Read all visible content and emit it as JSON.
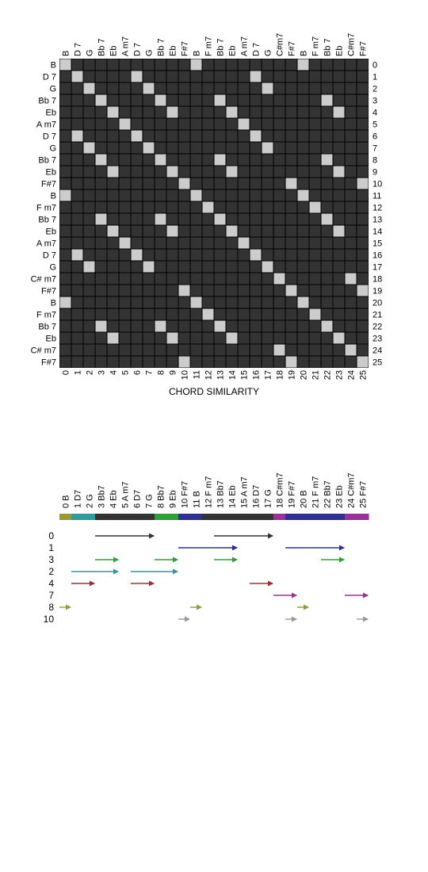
{
  "matrix": {
    "labels": [
      "B",
      "D 7",
      "G",
      "Bb 7",
      "Eb",
      "A m7",
      "D 7",
      "G",
      "Bb 7",
      "Eb",
      "F#7",
      "B",
      "F m7",
      "Bb 7",
      "Eb",
      "A m7",
      "D 7",
      "G",
      "C# m7",
      "F#7",
      "B",
      "F m7",
      "Bb 7",
      "Eb",
      "C# m7",
      "F#7"
    ],
    "top_labels": [
      "B",
      "D 7",
      "G",
      "Bb 7",
      "Eb",
      "A m7",
      "D 7",
      "G",
      "Bb 7",
      "Eb",
      "F#7",
      "B",
      "F m7",
      "Bb 7",
      "Eb",
      "A m7",
      "D 7",
      "G",
      "C#m7",
      "F#7",
      "B",
      "F m7",
      "Bb 7",
      "Eb",
      "C#m7",
      "F#7"
    ],
    "indices": [
      "0",
      "1",
      "2",
      "3",
      "4",
      "5",
      "6",
      "7",
      "8",
      "9",
      "10",
      "11",
      "12",
      "13",
      "14",
      "15",
      "16",
      "17",
      "18",
      "19",
      "20",
      "21",
      "22",
      "23",
      "24",
      "25"
    ],
    "title": "CHORD SIMILARITY",
    "cell_color_on": "#cccccc",
    "cell_color_off": "#333333"
  },
  "timeline": {
    "labels": [
      "0 B",
      "1 D7",
      "2 G",
      "3 Bb7",
      "4 Eb",
      "5 A m7",
      "6 D7",
      "7 G",
      "8 Bb7",
      "9 Eb",
      "10 F#7",
      "11 B",
      "12 F m7",
      "13 Bb7",
      "14 Eb",
      "15 A m7",
      "16 D7",
      "17 G",
      "18 C#m7",
      "19 F#7",
      "20 B",
      "21 F m7",
      "22 Bb7",
      "23 Eb",
      "24 C#m7",
      "25 F#7"
    ],
    "colorbar": [
      "#9a9a30",
      "#2e9c9c",
      "#2e9c9c",
      "#333333",
      "#333333",
      "#333333",
      "#333333",
      "#333333",
      "#2ea03a",
      "#2ea03a",
      "#303090",
      "#303090",
      "#333333",
      "#333333",
      "#333333",
      "#333333",
      "#333333",
      "#333333",
      "#9a309a",
      "#303090",
      "#303090",
      "#303090",
      "#303090",
      "#303090",
      "#9a309a",
      "#9a309a"
    ],
    "row_labels": [
      "0",
      "1",
      "3",
      "2",
      "4",
      "7",
      "8",
      "10"
    ],
    "row_colors": [
      "#333333",
      "#303090",
      "#2ea03a",
      "#2e9c9c",
      "#a03030",
      "#9a309a",
      "#9a9a30",
      "#999999"
    ],
    "arrows": [
      [
        [
          3,
          8
        ],
        [
          13,
          18
        ]
      ],
      [
        [
          10,
          15
        ],
        [
          19,
          24
        ]
      ],
      [
        [
          3,
          5
        ],
        [
          8,
          10
        ],
        [
          13,
          15
        ],
        [
          22,
          24
        ]
      ],
      [
        [
          1,
          5
        ],
        [
          6,
          10
        ]
      ],
      [
        [
          1,
          3
        ],
        [
          6,
          8
        ],
        [
          16,
          18
        ]
      ],
      [
        [
          18,
          20
        ],
        [
          24,
          26
        ]
      ],
      [
        [
          0,
          1
        ],
        [
          11,
          12
        ],
        [
          20,
          21
        ]
      ],
      [
        [
          10,
          11
        ],
        [
          19,
          20
        ],
        [
          25,
          26
        ]
      ]
    ]
  }
}
